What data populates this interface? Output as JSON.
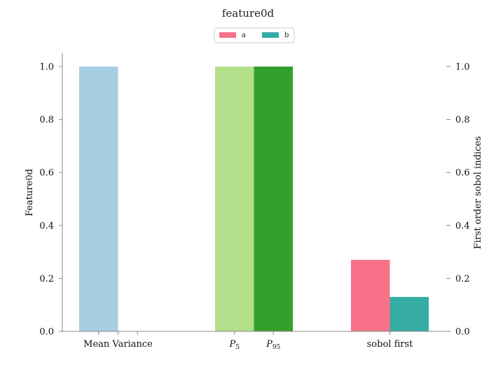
{
  "chart_data": {
    "type": "bar",
    "title": "feature0d",
    "xlabel": "",
    "ylabel": "Feature0d",
    "ylabel_right": "First order sobol indices",
    "ylim": [
      0,
      1.05
    ],
    "ylim_right": [
      0,
      1.05
    ],
    "yticks": [
      "0.0",
      "0.2",
      "0.4",
      "0.6",
      "0.8",
      "1.0"
    ],
    "yticks_right": [
      "0.0",
      "0.2",
      "0.4",
      "0.6",
      "0.8",
      "1.0"
    ],
    "grid": false,
    "legend_placement": "top-center",
    "categories": [
      "Mean Variance",
      "P5 P95",
      "sobol first"
    ],
    "bars": [
      {
        "label": "Mean",
        "value": 1.0,
        "color": "#a6cee3",
        "group": 0,
        "slot": 0
      },
      {
        "label": "Variance",
        "value": 0.0,
        "color": "#1f78b4",
        "group": 0,
        "slot": 1
      },
      {
        "label": "P5",
        "value": 1.0,
        "color": "#b2df8a",
        "group": 1,
        "slot": 0
      },
      {
        "label": "P95",
        "value": 1.0,
        "color": "#33a02c",
        "group": 1,
        "slot": 1
      },
      {
        "label": "a",
        "value": 0.27,
        "color": "#f77189",
        "group": 2,
        "slot": 0,
        "axis": "right"
      },
      {
        "label": "b",
        "value": 0.13,
        "color": "#36ada4",
        "group": 2,
        "slot": 1,
        "axis": "right"
      }
    ],
    "xtick_labels": [
      {
        "text": "Mean Variance",
        "group": 0,
        "pos": "center"
      },
      {
        "text": "P",
        "sub": "5",
        "group": 1,
        "pos": "slot0"
      },
      {
        "text": "P",
        "sub": "95",
        "group": 1,
        "pos": "slot1"
      },
      {
        "text": "sobol first",
        "group": 2,
        "pos": "center"
      }
    ],
    "legend": [
      {
        "label": "a",
        "color": "#f77189"
      },
      {
        "label": "b",
        "color": "#36ada4"
      }
    ]
  }
}
